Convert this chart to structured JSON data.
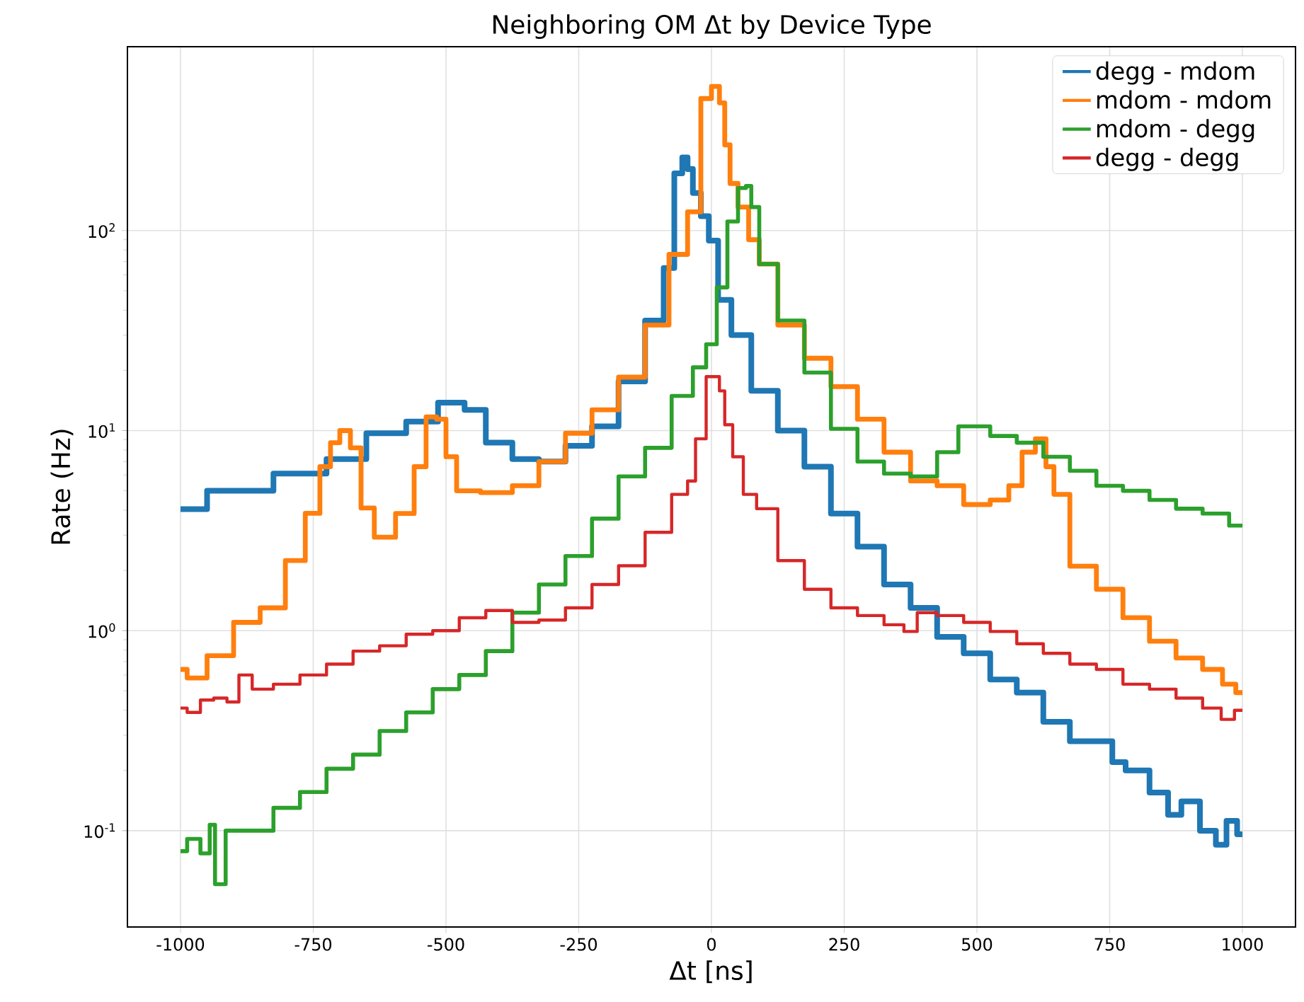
{
  "chart_data": {
    "type": "step",
    "title": "Neighboring OM Δt by Device Type",
    "xlabel": "Δt [ns]",
    "ylabel": "Rate (Hz)",
    "xlim": [
      -1100,
      1100
    ],
    "ylim": [
      0.033,
      830
    ],
    "log": "y",
    "grid": true,
    "legend": "top right",
    "xticks": [
      -1000,
      -750,
      -500,
      -250,
      0,
      250,
      500,
      750,
      1000
    ],
    "yticks": [
      {
        "value": 0.1,
        "label": "10$^{-1}$"
      },
      {
        "value": 1,
        "label": "10$^{0}$"
      },
      {
        "value": 10,
        "label": "10$^{1}$"
      },
      {
        "value": 100,
        "label": "10$^{2}$"
      }
    ],
    "series": [
      {
        "name": "degg - mdom",
        "color": "#1f77b4",
        "x": [
          -1000,
          -900,
          -750,
          -700,
          -600,
          -550,
          -480,
          -450,
          -400,
          -350,
          -300,
          -250,
          -200,
          -150,
          -100,
          -80,
          -60,
          -50,
          -40,
          -30,
          -10,
          0,
          25,
          50,
          100,
          150,
          200,
          250,
          300,
          350,
          400,
          450,
          500,
          550,
          600,
          650,
          700,
          750,
          760,
          800,
          850,
          870,
          900,
          940,
          960,
          980,
          1000
        ],
        "values": [
          4.05,
          5.0,
          6.1,
          7.2,
          9.7,
          11.1,
          13.8,
          12.7,
          8.7,
          7.2,
          7.0,
          8.4,
          10.5,
          17.6,
          35.5,
          65,
          193,
          232,
          203,
          154,
          118,
          89,
          45,
          30,
          15.8,
          10,
          6.6,
          3.85,
          2.63,
          1.7,
          1.3,
          0.93,
          0.77,
          0.57,
          0.49,
          0.35,
          0.28,
          0.28,
          0.22,
          0.2,
          0.155,
          0.12,
          0.14,
          0.1,
          0.085,
          0.112,
          0.096
        ]
      },
      {
        "name": "mdom - mdom",
        "color": "#ff7f0e",
        "x": [
          -1000,
          -975,
          -925,
          -875,
          -825,
          -780,
          -750,
          -725,
          -710,
          -690,
          -670,
          -650,
          -620,
          -570,
          -550,
          -525,
          -510,
          -490,
          -470,
          -400,
          -350,
          -300,
          -250,
          -200,
          -150,
          -100,
          -60,
          -30,
          -10,
          10,
          20,
          30,
          40,
          60,
          80,
          100,
          150,
          200,
          250,
          300,
          350,
          400,
          450,
          500,
          550,
          570,
          600,
          620,
          640,
          650,
          700,
          750,
          800,
          850,
          900,
          950,
          975,
          1000
        ],
        "values": [
          0.64,
          0.58,
          0.75,
          1.1,
          1.3,
          2.24,
          3.86,
          6.6,
          8.7,
          10,
          8.2,
          4.1,
          2.93,
          3.85,
          6.6,
          11.7,
          11.4,
          7.4,
          5.0,
          4.9,
          5.3,
          7.0,
          9.7,
          12.7,
          18.5,
          33.7,
          76,
          124,
          457,
          525,
          435,
          268,
          172,
          131,
          90,
          68,
          33.7,
          23,
          16.6,
          11.4,
          7.8,
          5.6,
          5.3,
          4.27,
          4.5,
          5.3,
          7.8,
          9.1,
          6.6,
          4.8,
          2.1,
          1.61,
          1.16,
          0.885,
          0.73,
          0.64,
          0.54,
          0.49
        ]
      },
      {
        "name": "mdom - degg",
        "color": "#2ca02c",
        "x": [
          -1000,
          -975,
          -950,
          -940,
          -930,
          -900,
          -850,
          -800,
          -750,
          -700,
          -650,
          -600,
          -550,
          -500,
          -450,
          -400,
          -350,
          -300,
          -250,
          -200,
          -150,
          -100,
          -50,
          -20,
          0,
          20,
          40,
          60,
          70,
          80,
          100,
          150,
          200,
          250,
          300,
          350,
          400,
          450,
          480,
          500,
          550,
          600,
          650,
          700,
          750,
          800,
          850,
          900,
          950,
          1000
        ],
        "values": [
          0.079,
          0.091,
          0.077,
          0.107,
          0.054,
          0.1,
          0.1,
          0.13,
          0.156,
          0.204,
          0.24,
          0.315,
          0.39,
          0.51,
          0.6,
          0.79,
          1.23,
          1.7,
          2.36,
          3.63,
          5.9,
          8.2,
          14.9,
          20.7,
          27,
          52,
          111,
          163,
          167,
          131,
          68,
          35.5,
          19.5,
          10.2,
          7.0,
          6.1,
          5.9,
          7.8,
          10.5,
          10.5,
          9.4,
          8.7,
          7.4,
          6.3,
          5.3,
          5.0,
          4.5,
          4.07,
          3.85,
          3.35
        ]
      },
      {
        "name": "degg - degg",
        "color": "#d62728",
        "x": [
          -1000,
          -975,
          -950,
          -925,
          -900,
          -880,
          -850,
          -800,
          -750,
          -700,
          -650,
          -600,
          -550,
          -500,
          -450,
          -400,
          -350,
          -300,
          -250,
          -200,
          -150,
          -100,
          -50,
          -40,
          -20,
          0,
          10,
          20,
          30,
          50,
          70,
          100,
          150,
          200,
          250,
          300,
          350,
          375,
          400,
          450,
          500,
          550,
          600,
          650,
          700,
          750,
          800,
          850,
          900,
          950,
          970,
          1000
        ],
        "values": [
          0.41,
          0.39,
          0.45,
          0.46,
          0.44,
          0.6,
          0.51,
          0.54,
          0.6,
          0.68,
          0.79,
          0.84,
          0.96,
          1.0,
          1.16,
          1.26,
          1.1,
          1.13,
          1.3,
          1.7,
          2.11,
          3.1,
          4.8,
          5.6,
          9.1,
          18.6,
          18.6,
          15.8,
          10.7,
          7.4,
          4.8,
          4.07,
          2.24,
          1.61,
          1.3,
          1.19,
          1.07,
          0.99,
          1.23,
          1.19,
          1.1,
          0.99,
          0.86,
          0.77,
          0.68,
          0.64,
          0.54,
          0.51,
          0.46,
          0.41,
          0.36,
          0.4
        ]
      }
    ]
  }
}
